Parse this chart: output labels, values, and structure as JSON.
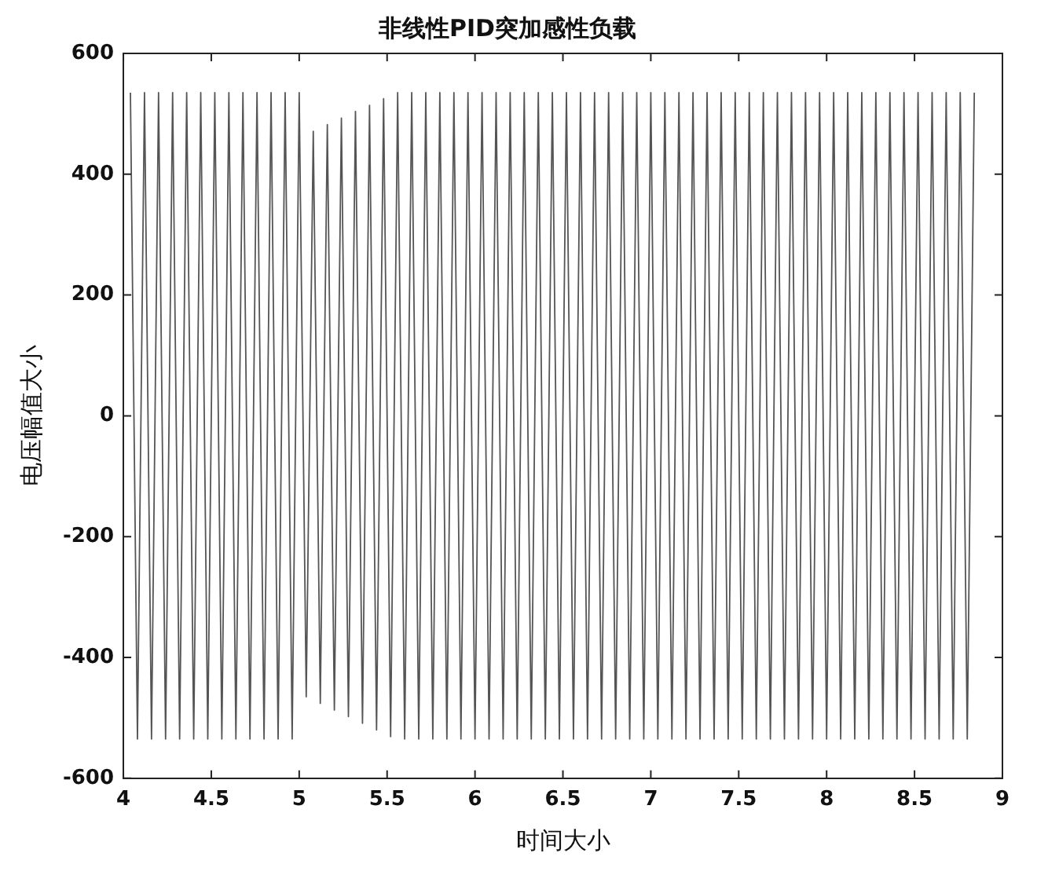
{
  "chart_data": {
    "type": "line",
    "title": "非线性PID突加感性负载",
    "xlabel": "时间大小",
    "ylabel": "电压幅值大小",
    "xlim": [
      4,
      9
    ],
    "xticks": [
      4,
      4.5,
      5,
      5.5,
      6,
      6.5,
      7,
      7.5,
      8,
      8.5,
      9
    ],
    "ylim": [
      -600,
      600
    ],
    "yticks": [
      -600,
      -400,
      -200,
      0,
      200,
      400,
      600
    ],
    "grid": false,
    "legend": false,
    "marker": "none",
    "line_style": "solid",
    "x": [
      4.04,
      4.08,
      4.12,
      4.16,
      4.2,
      4.24,
      4.28,
      4.32,
      4.36,
      4.4,
      4.44,
      4.48,
      4.52,
      4.56,
      4.6,
      4.64,
      4.68,
      4.72,
      4.76,
      4.8,
      4.84,
      4.88,
      4.92,
      4.96,
      5,
      5.04,
      5.08,
      5.12,
      5.16,
      5.2,
      5.24,
      5.28,
      5.32,
      5.36,
      5.4,
      5.44,
      5.48,
      5.52,
      5.56,
      5.6,
      5.64,
      5.68,
      5.72,
      5.76,
      5.8,
      5.84,
      5.88,
      5.92,
      5.96,
      6,
      6.04,
      6.08,
      6.12,
      6.16,
      6.2,
      6.24,
      6.28,
      6.32,
      6.36,
      6.4,
      6.44,
      6.48,
      6.52,
      6.56,
      6.6,
      6.64,
      6.68,
      6.72,
      6.76,
      6.8,
      6.84,
      6.88,
      6.92,
      6.96,
      7,
      7.04,
      7.08,
      7.12,
      7.16,
      7.2,
      7.24,
      7.28,
      7.32,
      7.36,
      7.4,
      7.44,
      7.48,
      7.52,
      7.56,
      7.6,
      7.64,
      7.68,
      7.72,
      7.76,
      7.8,
      7.84,
      7.88,
      7.92,
      7.96,
      8,
      8.04,
      8.08,
      8.12,
      8.16,
      8.2,
      8.24,
      8.28,
      8.32,
      8.36,
      8.4,
      8.44,
      8.48,
      8.52,
      8.56,
      8.6,
      8.64,
      8.68,
      8.72,
      8.76,
      8.8,
      8.84
    ],
    "series": [
      {
        "color": "#555555",
        "values": [
          535,
          -535,
          535,
          -535,
          535,
          -535,
          535,
          -535,
          535,
          -535,
          535,
          -535,
          535,
          -535,
          535,
          -535,
          535,
          -535,
          535,
          -535,
          535,
          -535,
          535,
          -535,
          535,
          -465,
          471,
          -476,
          482,
          -487,
          493,
          -498,
          504,
          -509,
          514,
          -520,
          525,
          -531,
          535,
          -535,
          535,
          -535,
          535,
          -535,
          535,
          -535,
          535,
          -535,
          535,
          -535,
          535,
          -535,
          535,
          -535,
          535,
          -535,
          535,
          -535,
          535,
          -535,
          535,
          -535,
          535,
          -535,
          535,
          -535,
          535,
          -535,
          535,
          -535,
          535,
          -535,
          535,
          -535,
          535,
          -535,
          535,
          -535,
          535,
          -535,
          535,
          -535,
          535,
          -535,
          535,
          -535,
          535,
          -535,
          535,
          -535,
          535,
          -535,
          535,
          -535,
          535,
          -535,
          535,
          -535,
          535,
          -535,
          535,
          -535,
          535,
          -535,
          535,
          -535,
          535,
          -535,
          535,
          -535,
          535,
          -535,
          535,
          -535,
          535,
          -535,
          535,
          -535,
          535,
          -535,
          535
        ]
      }
    ]
  }
}
